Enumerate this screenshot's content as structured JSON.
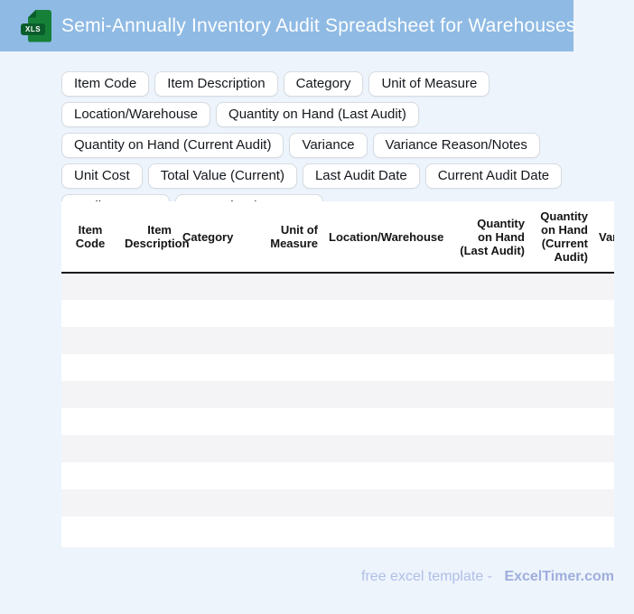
{
  "banner": {
    "title": "Semi-Annually Inventory Audit Spreadsheet for Warehouses",
    "icon_label": "XLS"
  },
  "chips": [
    "Item Code",
    "Item Description",
    "Category",
    "Unit of Measure",
    "Location/Warehouse",
    "Quantity on Hand (Last Audit)",
    "Quantity on Hand (Current Audit)",
    "Variance",
    "Variance Reason/Notes",
    "Unit Cost",
    "Total Value (Current)",
    "Last Audit Date",
    "Current Audit Date",
    "Auditor Name",
    "Supervisor/Approver"
  ],
  "table": {
    "columns": [
      {
        "label": "Item Code",
        "align": "center",
        "width": 64
      },
      {
        "label": "Item Description",
        "align": "right",
        "width": 64
      },
      {
        "label": "Category",
        "align": "left",
        "width": 94
      },
      {
        "label": "Unit of Measure",
        "align": "right",
        "width": 68
      },
      {
        "label": "Location/Warehouse",
        "align": "left",
        "width": 145
      },
      {
        "label": "Quantity on Hand (Last Audit)",
        "align": "right",
        "width": 84
      },
      {
        "label": "Quantity on Hand (Current Audit)",
        "align": "right",
        "width": 70
      },
      {
        "label": "Variance",
        "align": "left",
        "width": 80
      }
    ],
    "row_count": 10,
    "rows_are_empty": true
  },
  "footer": {
    "prefix": "free excel template -",
    "brand": "ExcelTimer.com"
  },
  "colors": {
    "banner_blue": "#8FBAE4",
    "page_background": "#EDF4FC",
    "row_stripe_gray": "#F4F4F6",
    "header_border_black": "#1A1A1A",
    "chip_border": "#D7DBE1",
    "icon_green": "#168039",
    "icon_green_dark": "#0B5D2B",
    "footer_text": "#B0BEE7",
    "footer_brand": "#9FAEDC"
  }
}
